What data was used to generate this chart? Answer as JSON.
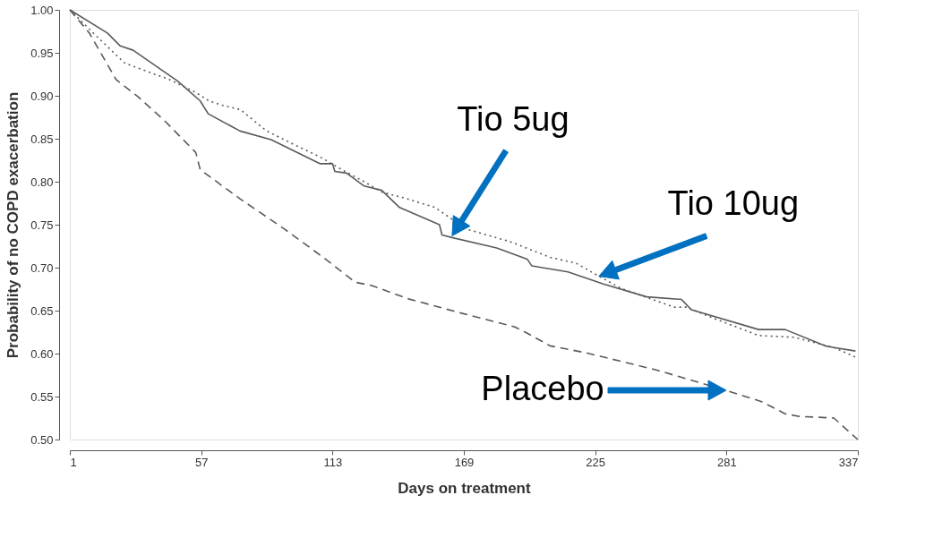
{
  "chart_data": {
    "type": "line",
    "xlabel": "Days on treatment",
    "ylabel": "Probability of no COPD exacerbation",
    "xlim": [
      1,
      337
    ],
    "xticks": [
      1,
      57,
      113,
      169,
      225,
      281,
      337
    ],
    "ylim": [
      0.5,
      1.0
    ],
    "yticks": [
      {
        "value": 0.5,
        "label": "0.50"
      },
      {
        "value": 0.55,
        "label": "0.55"
      },
      {
        "value": 0.6,
        "label": "0.60"
      },
      {
        "value": 0.65,
        "label": "0.65"
      },
      {
        "value": 0.7,
        "label": "0.70"
      },
      {
        "value": 0.75,
        "label": "0.75"
      },
      {
        "value": 0.8,
        "label": "0.80"
      },
      {
        "value": 0.85,
        "label": "0.85"
      },
      {
        "value": 0.9,
        "label": "0.90"
      },
      {
        "value": 0.95,
        "label": "0.95"
      },
      {
        "value": 1.0,
        "label": "1.00"
      }
    ],
    "grid": false,
    "marker": "none",
    "series": [
      {
        "color": "#5a5a5a",
        "line_style": "solid",
        "x": [
          1,
          17,
          22.5,
          28,
          47,
          56.6,
          60,
          73.6,
          86.8,
          107.6,
          113,
          114,
          119,
          126.5,
          134,
          141.6,
          158.6,
          159.7,
          164,
          183,
          196,
          198,
          213.4,
          228.5,
          247,
          261.8,
          266,
          294.7,
          306,
          323,
          326.8,
          336
        ],
        "values": [
          1.0,
          0.973,
          0.958,
          0.953,
          0.917,
          0.894,
          0.879,
          0.859,
          0.849,
          0.821,
          0.821,
          0.812,
          0.81,
          0.795,
          0.79,
          0.77,
          0.75,
          0.738,
          0.735,
          0.723,
          0.71,
          0.702,
          0.695,
          0.681,
          0.666,
          0.663,
          0.651,
          0.628,
          0.628,
          0.609,
          0.607,
          0.603
        ]
      },
      {
        "color": "#5a5a5a",
        "line_style": "dotted",
        "x": [
          1,
          11,
          24.4,
          43.3,
          54.7,
          60.3,
          66,
          73.6,
          85,
          96,
          107.6,
          117,
          126.5,
          134,
          145,
          156.7,
          170,
          189,
          205.8,
          217,
          226.6,
          236,
          258.7,
          264,
          273.7,
          294.7,
          309.8,
          326.8,
          336
        ],
        "values": [
          1.0,
          0.973,
          0.938,
          0.919,
          0.904,
          0.894,
          0.889,
          0.884,
          0.859,
          0.844,
          0.829,
          0.814,
          0.8,
          0.788,
          0.78,
          0.77,
          0.745,
          0.73,
          0.712,
          0.705,
          0.69,
          0.676,
          0.654,
          0.654,
          0.643,
          0.621,
          0.619,
          0.607,
          0.596
        ]
      },
      {
        "color": "#5a5a5a",
        "line_style": "dashed",
        "x": [
          1,
          9.3,
          20.7,
          30,
          41.4,
          54.7,
          56.6,
          73.6,
          92.5,
          111,
          122.7,
          130,
          145,
          168,
          190.7,
          194.5,
          205.8,
          221,
          251,
          281,
          296,
          306,
          311.6,
          326.8,
          337
        ],
        "values": [
          1.0,
          0.973,
          0.919,
          0.899,
          0.871,
          0.834,
          0.814,
          0.78,
          0.745,
          0.708,
          0.683,
          0.679,
          0.664,
          0.647,
          0.631,
          0.626,
          0.609,
          0.601,
          0.581,
          0.557,
          0.544,
          0.53,
          0.527,
          0.525,
          0.5
        ]
      }
    ],
    "annotations": [
      {
        "text": "Tio 5ug",
        "x": 164,
        "y": 0.737
      },
      {
        "text": "Tio 10ug",
        "x": 226.6,
        "y": 0.69
      },
      "Placebo"
    ]
  }
}
